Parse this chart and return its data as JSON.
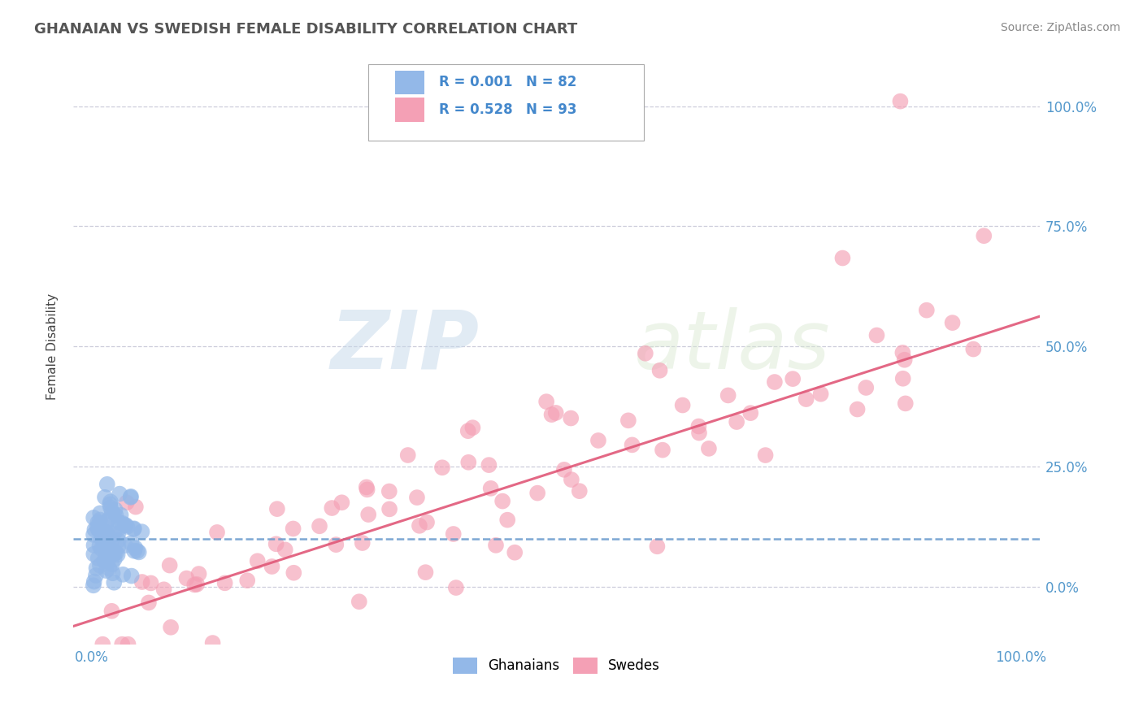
{
  "title": "GHANAIAN VS SWEDISH FEMALE DISABILITY CORRELATION CHART",
  "source": "Source: ZipAtlas.com",
  "ylabel": "Female Disability",
  "xlim": [
    -0.02,
    1.02
  ],
  "ylim": [
    -0.12,
    1.12
  ],
  "x_ticks": [
    0.0,
    0.25,
    0.5,
    0.75,
    1.0
  ],
  "x_tick_labels": [
    "0.0%",
    "",
    "",
    "",
    "100.0%"
  ],
  "y_ticks": [
    0.0,
    0.25,
    0.5,
    0.75,
    1.0
  ],
  "y_tick_labels_right": [
    "0.0%",
    "25.0%",
    "50.0%",
    "75.0%",
    "100.0%"
  ],
  "ghanaian_color": "#93b8e8",
  "swedish_color": "#f4a0b5",
  "ghanaian_R": 0.001,
  "ghanaian_N": 82,
  "swedish_R": 0.528,
  "swedish_N": 93,
  "background_color": "#ffffff",
  "grid_color": "#c8c8d8",
  "watermark_zip": "ZIP",
  "watermark_atlas": "atlas",
  "ghanaian_trend_color": "#6699cc",
  "swedish_trend_color": "#e05878"
}
